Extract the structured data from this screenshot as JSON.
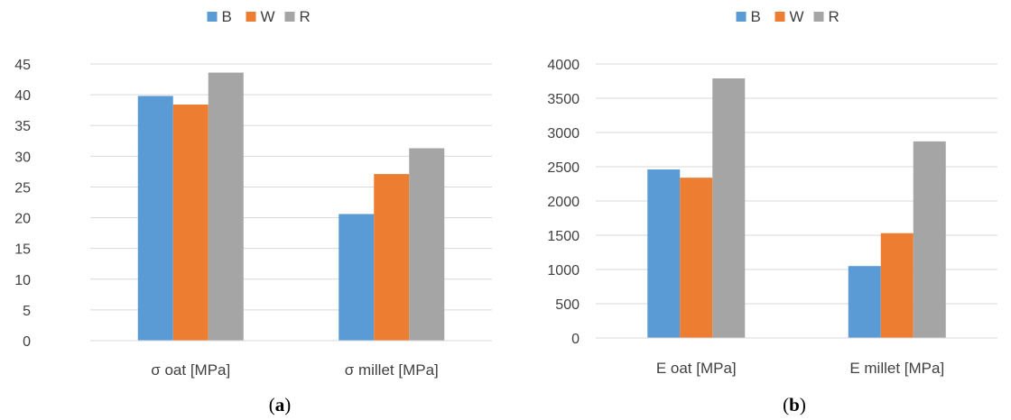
{
  "chart_data": [
    {
      "type": "bar",
      "panel_label": "a",
      "categories": [
        "σ oat [MPa]",
        "σ millet [MPa]"
      ],
      "series": [
        {
          "name": "B",
          "color": "#5B9BD5",
          "values": [
            39.8,
            20.6
          ]
        },
        {
          "name": "W",
          "color": "#ED7D31",
          "values": [
            38.4,
            27.1
          ]
        },
        {
          "name": "R",
          "color": "#A5A5A5",
          "values": [
            43.6,
            31.3
          ]
        }
      ],
      "ylim": [
        0,
        45
      ],
      "yticks": [
        0,
        5,
        10,
        15,
        20,
        25,
        30,
        35,
        40,
        45
      ],
      "grid": true,
      "legend_position": "top"
    },
    {
      "type": "bar",
      "panel_label": "b",
      "categories": [
        "E oat [MPa]",
        "E millet [MPa]"
      ],
      "series": [
        {
          "name": "B",
          "color": "#5B9BD5",
          "values": [
            2460,
            1050
          ]
        },
        {
          "name": "W",
          "color": "#ED7D31",
          "values": [
            2340,
            1530
          ]
        },
        {
          "name": "R",
          "color": "#A5A5A5",
          "values": [
            3790,
            2870
          ]
        }
      ],
      "ylim": [
        0,
        4000
      ],
      "yticks": [
        0,
        500,
        1000,
        1500,
        2000,
        2500,
        3000,
        3500,
        4000
      ],
      "grid": true,
      "legend_position": "top"
    }
  ]
}
